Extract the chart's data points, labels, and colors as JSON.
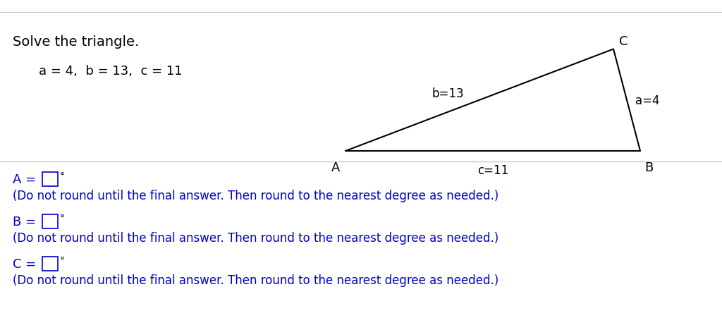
{
  "title": "Solve the triangle.",
  "given_text": "a = 4,  b = 13,  c = 11",
  "background_color": "#ffffff",
  "separator_color": "#c8c8c8",
  "text_color": "#000000",
  "blue_color": "#0000cc",
  "tri_A": [
    0.0,
    0.0
  ],
  "tri_B": [
    11.0,
    0.0
  ],
  "tri_C": [
    10.0,
    8.5
  ],
  "answer_lines": [
    {
      "label": "A =",
      "note": "(Do not round until the final answer. Then round to the nearest degree as needed.)"
    },
    {
      "label": "B =",
      "note": "(Do not round until the final answer. Then round to the nearest degree as needed.)"
    },
    {
      "label": "C =",
      "note": "(Do not round until the final answer. Then round to the nearest degree as needed.)"
    }
  ]
}
